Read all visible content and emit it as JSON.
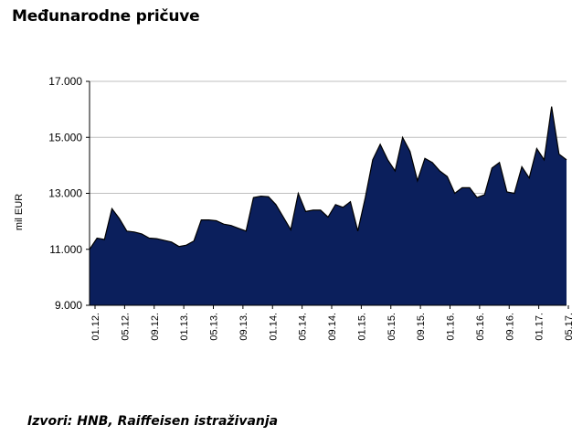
{
  "header": {
    "title": "Međunarodne pričuve"
  },
  "footer": {
    "source": "Izvori: HNB, Raiffeisen istraživanja"
  },
  "chart_data": {
    "type": "area",
    "title": "Međunarodne pričuve",
    "xlabel": "",
    "ylabel": "mil EUR",
    "ylim": [
      9000,
      17000
    ],
    "yticks": [
      9000,
      11000,
      13000,
      15000,
      17000
    ],
    "ytick_labels": [
      "9.000",
      "11.000",
      "13.000",
      "15.000",
      "17.000"
    ],
    "xtick_labels": [
      "01.12.",
      "05.12.",
      "09.12.",
      "01.13.",
      "05.13.",
      "09.13.",
      "01.14.",
      "05.14.",
      "09.14.",
      "01.15.",
      "05.15.",
      "09.15.",
      "01.16.",
      "05.16.",
      "09.16.",
      "01.17.",
      "05.17."
    ],
    "grid": "horizontal",
    "fill_color": "#0b1f5c",
    "line_color": "#000000",
    "series": [
      {
        "values": [
          11000,
          11400,
          11350,
          12450,
          12100,
          11650,
          11620,
          11550,
          11400,
          11380,
          11320,
          11260,
          11100,
          11150,
          11300,
          12050,
          12050,
          12020,
          11900,
          11850,
          11750,
          11650,
          12850,
          12900,
          12880,
          12600,
          12150,
          11700,
          13000,
          12350,
          12400,
          12400,
          12150,
          12600,
          12500,
          12700,
          11650,
          12850,
          14200,
          14750,
          14200,
          13800,
          15000,
          14500,
          13450,
          14250,
          14100,
          13800,
          13600,
          13000,
          13200,
          13200,
          12850,
          12950,
          13900,
          14100,
          13050,
          13000,
          13950,
          13550,
          14600,
          14200,
          16100,
          14400,
          14200
        ]
      }
    ]
  }
}
